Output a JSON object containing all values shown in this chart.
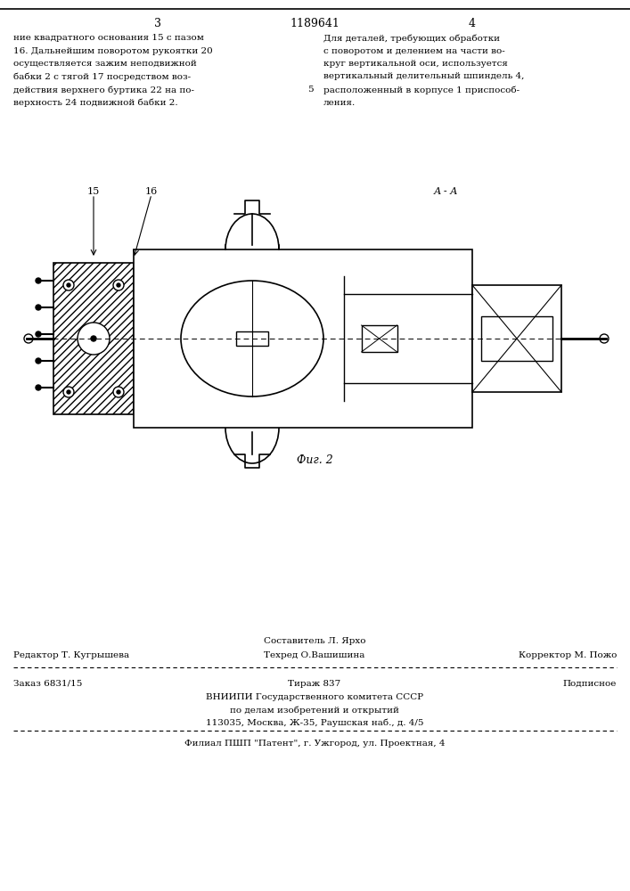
{
  "page_number_left": "3",
  "patent_number": "1189641",
  "page_number_right": "4",
  "left_text": "ние квадратного основания 15 с пазом\n16. Дальнейшим поворотом рукоятки 20\nосуществляется зажим неподвижной\nбабки 2 с тягой 17 посредством воз-\nдействия верхнего буртика 22 на по-\nверхность 24 подвижной бабки 2.",
  "right_text": "Для деталей, требующих обработки\nс поворотом и делением на части во-\nкруг вертикальной оси, используется\nвертикальный делительный шпиндель 4,\nрасположенный в корпусе 1 приспособ-\nления.",
  "line_number_ref": "5",
  "fig_label": "Фиг. 2",
  "section_label": "А - А",
  "part_labels": [
    "15",
    "16"
  ],
  "footer_line1_center": "Составитель Л. Ярхо",
  "footer_line2_left": "Редактор Т. Кугрышева",
  "footer_line2_center": "Техред О.Вашишина",
  "footer_line2_right": "Корректор М. Пожо",
  "footer_line3_left": "Заказ 6831/15",
  "footer_line3_center": "Тираж 837",
  "footer_line3_right": "Подписное",
  "footer_line4": "ВНИИПИ Государственного комитета СССР",
  "footer_line5": "по делам изобретений и открытий",
  "footer_line6": "113035, Москва, Ж-35, Раушская наб., д. 4/5",
  "footer_line7": "Филиал ПШП \"Патент\", г. Ужгород, ул. Проектная, 4",
  "bg_color": "#ffffff",
  "text_color": "#000000",
  "line_color": "#555555"
}
